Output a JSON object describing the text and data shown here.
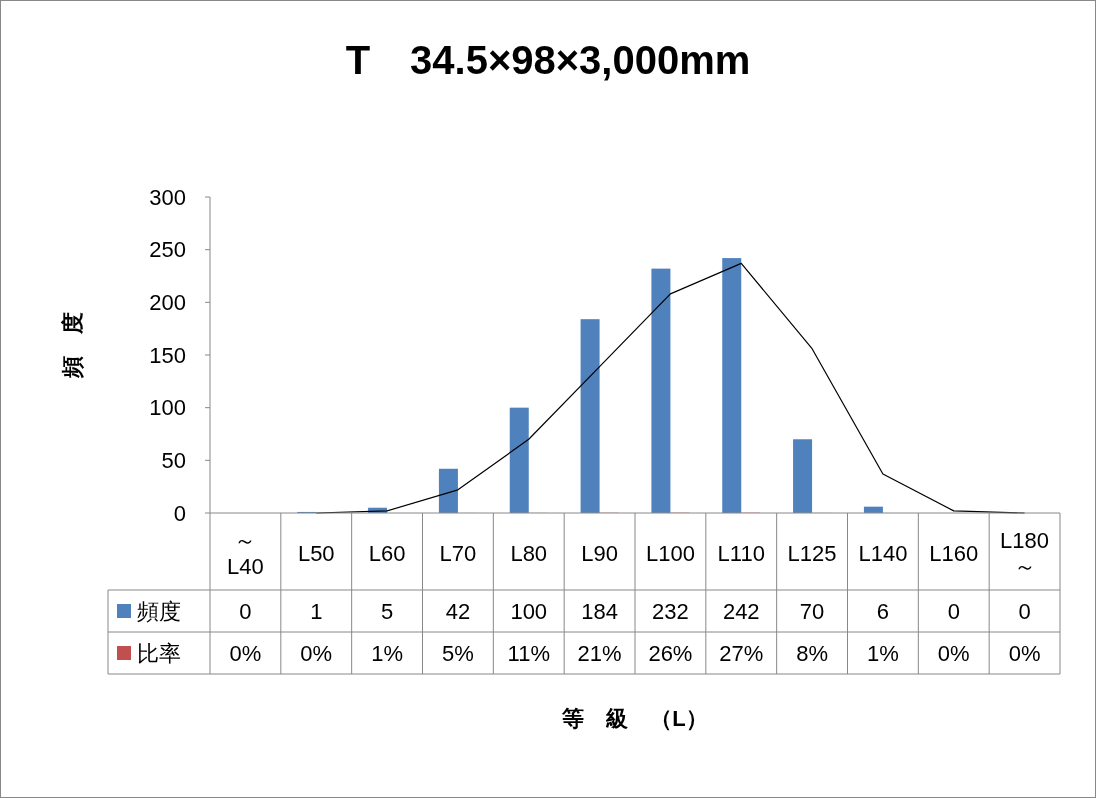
{
  "chart_data": {
    "type": "bar",
    "title": "T　34.5×98×3,000mm",
    "annotations": [
      "等　級　（L）"
    ],
    "ylabel": "頻　度",
    "categories": [
      "～\nL40",
      "L50",
      "L60",
      "L70",
      "L80",
      "L90",
      "L100",
      "L110",
      "L125",
      "L140",
      "L160",
      "L180\n～"
    ],
    "ylim": [
      0,
      300
    ],
    "yticks": [
      0,
      50,
      100,
      150,
      200,
      250,
      300
    ],
    "grid": false,
    "legend": "bottom",
    "series": [
      {
        "name": "頻度",
        "color": "#4f81bd",
        "values": [
          0,
          1,
          5,
          42,
          100,
          184,
          232,
          242,
          70,
          6,
          0,
          0
        ],
        "value_labels": [
          "0",
          "1",
          "5",
          "42",
          "100",
          "184",
          "232",
          "242",
          "70",
          "6",
          "0",
          "0"
        ]
      },
      {
        "name": "比率",
        "color": "#c0504d",
        "values": [
          0,
          0,
          0.01,
          0.05,
          0.11,
          0.21,
          0.26,
          0.27,
          0.08,
          0.01,
          0,
          0
        ],
        "value_labels": [
          "0%",
          "0%",
          "1%",
          "5%",
          "11%",
          "21%",
          "26%",
          "27%",
          "8%",
          "1%",
          "0%",
          "0%"
        ]
      },
      {
        "type": "line",
        "color": "#000000",
        "marker": "none",
        "line_style": "solid",
        "values": [
          null,
          0,
          2,
          22,
          70,
          139,
          208,
          237,
          156,
          37,
          2,
          0
        ]
      }
    ]
  }
}
